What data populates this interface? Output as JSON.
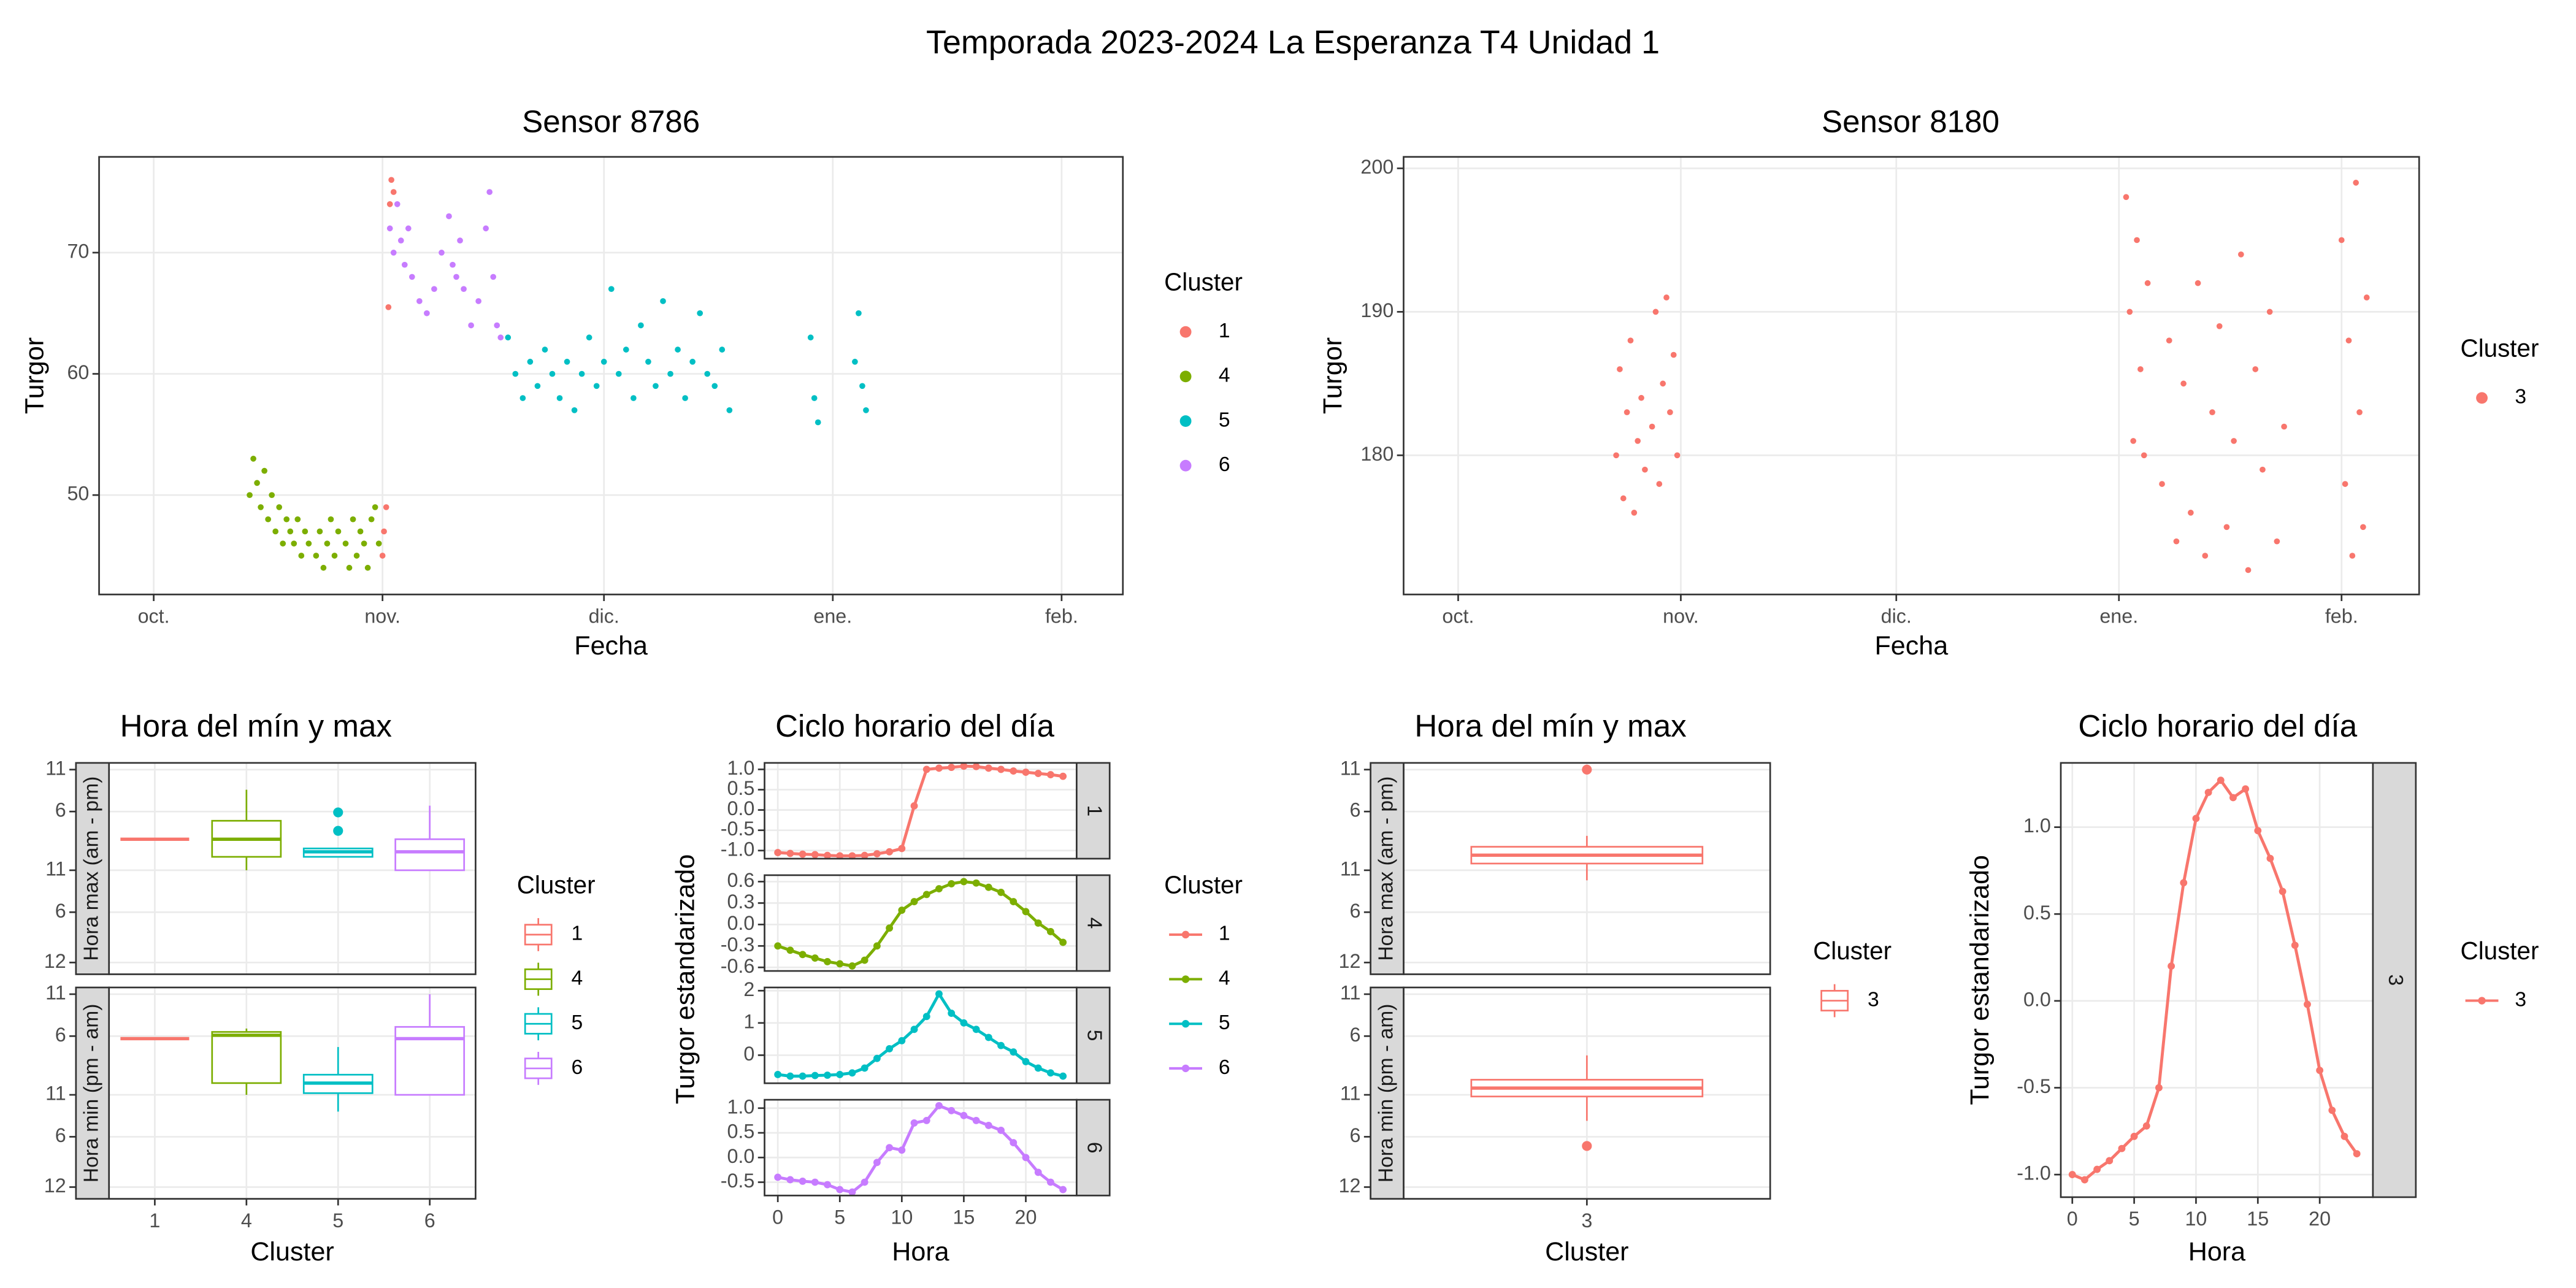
{
  "title": "Temporada 2023-2024 La Esperanza T4 Unidad 1",
  "chart_data": [
    {
      "type": "scatter",
      "title": "Sensor 8786",
      "x_label": "Fecha",
      "y_label": "Turgor",
      "legend_title": "Cluster",
      "xlim": [
        -7.4,
        131.3
      ],
      "xticks": [
        {
          "value": 0,
          "label": "oct."
        },
        {
          "value": 31,
          "label": "nov."
        },
        {
          "value": 61,
          "label": "dic."
        },
        {
          "value": 92,
          "label": "ene."
        },
        {
          "value": 123,
          "label": "feb."
        }
      ],
      "ylim": [
        41.8,
        77.9
      ],
      "yticks": [
        50,
        60,
        70
      ],
      "grid": true,
      "series": [
        {
          "name": "1",
          "color": "#F8766D",
          "x": [
            31,
            31.2,
            31.5,
            31.8,
            32,
            32.2,
            32.5
          ],
          "values": [
            45,
            47,
            49,
            65.5,
            74,
            76,
            75
          ]
        },
        {
          "name": "4",
          "color": "#7CAE00",
          "x": [
            13,
            13.5,
            14,
            14.5,
            15,
            15.5,
            16,
            16.5,
            17,
            17.5,
            18,
            18.5,
            19,
            19.5,
            20,
            20.5,
            21,
            22,
            22.5,
            23,
            23.5,
            24,
            24.5,
            25,
            26,
            26.5,
            27,
            27.5,
            28,
            28.5,
            29,
            29.5,
            30,
            30.5
          ],
          "values": [
            50,
            53,
            51,
            49,
            52,
            48,
            50,
            47,
            49,
            46,
            48,
            47,
            46,
            48,
            45,
            47,
            46,
            45,
            47,
            44,
            46,
            48,
            45,
            47,
            46,
            44,
            48,
            45,
            47,
            46,
            44,
            48,
            49,
            46
          ]
        },
        {
          "name": "5",
          "color": "#00BFC4",
          "x": [
            48,
            49,
            50,
            51,
            52,
            53,
            54,
            55,
            56,
            57,
            58,
            59,
            60,
            61,
            62,
            63,
            64,
            65,
            66,
            67,
            68,
            69,
            70,
            71,
            72,
            73,
            74,
            75,
            76,
            77,
            78,
            89,
            89.5,
            90,
            95,
            95.5,
            96,
            96.5
          ],
          "values": [
            63,
            60,
            58,
            61,
            59,
            62,
            60,
            58,
            61,
            57,
            60,
            63,
            59,
            61,
            67,
            60,
            62,
            58,
            64,
            61,
            59,
            66,
            60,
            62,
            58,
            61,
            65,
            60,
            59,
            62,
            57,
            63,
            58,
            56,
            61,
            65,
            59,
            57
          ]
        },
        {
          "name": "6",
          "color": "#C77CFF",
          "x": [
            32,
            32.5,
            33,
            33.5,
            34,
            34.5,
            35,
            36,
            37,
            38,
            39,
            40,
            40.5,
            41,
            41.5,
            42,
            43,
            44,
            45,
            45.5,
            46,
            46.5,
            47
          ],
          "values": [
            72,
            70,
            74,
            71,
            69,
            72,
            68,
            66,
            65,
            67,
            70,
            73,
            69,
            68,
            71,
            67,
            64,
            66,
            72,
            75,
            68,
            64,
            63
          ]
        }
      ]
    },
    {
      "type": "scatter",
      "title": "Sensor 8180",
      "x_label": "Fecha",
      "y_label": "Turgor",
      "legend_title": "Cluster",
      "xlim": [
        -7.6,
        133.8
      ],
      "xticks": [
        {
          "value": 0,
          "label": "oct."
        },
        {
          "value": 31,
          "label": "nov."
        },
        {
          "value": 61,
          "label": "dic."
        },
        {
          "value": 92,
          "label": "ene."
        },
        {
          "value": 123,
          "label": "feb."
        }
      ],
      "ylim": [
        170.3,
        200.8
      ],
      "yticks": [
        180,
        190,
        200
      ],
      "grid": true,
      "series": [
        {
          "name": "3",
          "color": "#F8766D",
          "x": [
            22,
            22.5,
            23,
            23.5,
            24,
            24.5,
            25,
            25.5,
            26,
            27,
            27.5,
            28,
            28.5,
            29,
            29.5,
            30,
            30.5,
            93,
            93.5,
            94,
            94.5,
            95,
            95.5,
            96,
            98,
            99,
            100,
            101,
            102,
            103,
            104,
            105,
            106,
            107,
            108,
            109,
            110,
            111,
            112,
            113,
            114,
            115,
            123,
            123.5,
            124,
            124.5,
            125,
            125.5,
            126,
            126.5
          ],
          "values": [
            180,
            186,
            177,
            183,
            188,
            176,
            181,
            184,
            179,
            182,
            190,
            178,
            185,
            191,
            183,
            187,
            180,
            198,
            190,
            181,
            195,
            186,
            180,
            192,
            178,
            188,
            174,
            185,
            176,
            192,
            173,
            183,
            189,
            175,
            181,
            194,
            172,
            186,
            179,
            190,
            174,
            182,
            195,
            178,
            188,
            173,
            199,
            183,
            175,
            191
          ]
        }
      ]
    },
    {
      "type": "box",
      "title": "Hora del mín y max",
      "x_label": "Cluster",
      "legend_title": "Cluster",
      "categories": [
        "1",
        "4",
        "5",
        "6"
      ],
      "colors": [
        "#F8766D",
        "#7CAE00",
        "#00BFC4",
        "#C77CFF"
      ],
      "ylim": [
        -1.4,
        23.8
      ],
      "yticks": [
        {
          "value": 0,
          "label": "12"
        },
        6,
        11,
        {
          "value": 18,
          "label": "6"
        },
        {
          "value": 23,
          "label": "11"
        }
      ],
      "grid": true,
      "facets": [
        {
          "label": "Hora max (am - pm)",
          "boxes": [
            {
              "q1": 14.7,
              "median": 14.7,
              "q3": 14.7,
              "whislo": 14.7,
              "whishi": 14.7,
              "outliers": []
            },
            {
              "q1": 12.6,
              "median": 14.7,
              "q3": 16.9,
              "whislo": 11.0,
              "whishi": 20.6,
              "outliers": []
            },
            {
              "q1": 12.6,
              "median": 13.2,
              "q3": 13.6,
              "whislo": 12.6,
              "whishi": 13.6,
              "outliers": [
                17.9,
                15.7
              ]
            },
            {
              "q1": 11.0,
              "median": 13.2,
              "q3": 14.7,
              "whislo": 11.0,
              "whishi": 18.7,
              "outliers": []
            }
          ]
        },
        {
          "label": "Hora min (pm - am)",
          "boxes": [
            {
              "q1": 17.7,
              "median": 17.7,
              "q3": 17.7,
              "whislo": 17.7,
              "whishi": 17.7,
              "outliers": []
            },
            {
              "q1": 12.4,
              "median": 18.1,
              "q3": 18.5,
              "whislo": 11.0,
              "whishi": 18.9,
              "outliers": []
            },
            {
              "q1": 11.2,
              "median": 12.4,
              "q3": 13.4,
              "whislo": 9.0,
              "whishi": 16.7,
              "outliers": []
            },
            {
              "q1": 11.0,
              "median": 17.7,
              "q3": 19.1,
              "whislo": 11.0,
              "whishi": 23.0,
              "outliers": []
            }
          ]
        }
      ]
    },
    {
      "type": "line",
      "title": "Ciclo horario del día",
      "x_label": "Hora",
      "y_label": "Turgor estandarizado",
      "legend_title": "Cluster",
      "x": [
        0,
        1,
        2,
        3,
        4,
        5,
        6,
        7,
        8,
        9,
        10,
        11,
        12,
        13,
        14,
        15,
        16,
        17,
        18,
        19,
        20,
        21,
        22,
        23
      ],
      "xlim": [
        -1.07,
        24.1
      ],
      "xticks": [
        0,
        5,
        10,
        15,
        20
      ],
      "grid": true,
      "facets": [
        {
          "label": "1",
          "color": "#F8766D",
          "ylim": [
            -1.2,
            1.16
          ],
          "yticks": [
            {
              "value": 1,
              "label": "1.0"
            },
            0.5,
            {
              "value": 0,
              "label": "0.0"
            },
            -0.5,
            {
              "value": -1,
              "label": "-1.0"
            }
          ],
          "values": [
            -1.05,
            -1.07,
            -1.09,
            -1.1,
            -1.12,
            -1.13,
            -1.13,
            -1.12,
            -1.08,
            -1.03,
            -0.95,
            0.1,
            1.0,
            1.03,
            1.05,
            1.08,
            1.07,
            1.03,
            1.0,
            0.96,
            0.93,
            0.9,
            0.87,
            0.83
          ]
        },
        {
          "label": "4",
          "color": "#7CAE00",
          "ylim": [
            -0.65,
            0.69
          ],
          "yticks": [
            0.6,
            0.3,
            {
              "value": 0,
              "label": "0.0"
            },
            -0.3,
            -0.6
          ],
          "values": [
            -0.3,
            -0.36,
            -0.42,
            -0.47,
            -0.52,
            -0.55,
            -0.58,
            -0.5,
            -0.3,
            -0.05,
            0.2,
            0.32,
            0.42,
            0.5,
            0.57,
            0.6,
            0.58,
            0.52,
            0.45,
            0.32,
            0.18,
            0.02,
            -0.1,
            -0.25
          ]
        },
        {
          "label": "5",
          "color": "#00BFC4",
          "ylim": [
            -0.87,
            2.1
          ],
          "yticks": [
            2,
            1,
            0
          ],
          "values": [
            -0.6,
            -0.65,
            -0.65,
            -0.63,
            -0.62,
            -0.6,
            -0.55,
            -0.4,
            -0.1,
            0.2,
            0.45,
            0.8,
            1.2,
            1.9,
            1.3,
            1.0,
            0.8,
            0.55,
            0.3,
            0.1,
            -0.2,
            -0.4,
            -0.55,
            -0.65
          ]
        },
        {
          "label": "6",
          "color": "#C77CFF",
          "ylim": [
            -0.77,
            1.17
          ],
          "yticks": [
            {
              "value": 1,
              "label": "1.0"
            },
            0.5,
            {
              "value": 0,
              "label": "0.0"
            },
            -0.5
          ],
          "values": [
            -0.4,
            -0.45,
            -0.48,
            -0.5,
            -0.55,
            -0.65,
            -0.7,
            -0.5,
            -0.1,
            0.2,
            0.15,
            0.7,
            0.75,
            1.05,
            0.95,
            0.85,
            0.75,
            0.65,
            0.55,
            0.3,
            0.0,
            -0.3,
            -0.5,
            -0.65
          ]
        }
      ]
    },
    {
      "type": "box",
      "title": "Hora del mín y max",
      "x_label": "Cluster",
      "legend_title": "Cluster",
      "categories": [
        "3"
      ],
      "colors": [
        "#F8766D"
      ],
      "ylim": [
        -1.4,
        23.8
      ],
      "yticks": [
        {
          "value": 0,
          "label": "12"
        },
        6,
        11,
        {
          "value": 18,
          "label": "6"
        },
        {
          "value": 23,
          "label": "11"
        }
      ],
      "grid": true,
      "facets": [
        {
          "label": "Hora max (am - pm)",
          "boxes": [
            {
              "q1": 11.8,
              "median": 12.8,
              "q3": 13.8,
              "whislo": 9.8,
              "whishi": 15.1,
              "outliers": [
                23.0
              ]
            }
          ]
        },
        {
          "label": "Hora min (pm - am)",
          "boxes": [
            {
              "q1": 10.8,
              "median": 11.8,
              "q3": 12.8,
              "whislo": 7.9,
              "whishi": 15.7,
              "outliers": [
                4.9
              ]
            }
          ]
        }
      ]
    },
    {
      "type": "line",
      "title": "Ciclo horario del día",
      "x_label": "Hora",
      "y_label": "Turgor estandarizado",
      "legend_title": "Cluster",
      "x": [
        0,
        1,
        2,
        3,
        4,
        5,
        6,
        7,
        8,
        9,
        10,
        11,
        12,
        13,
        14,
        15,
        16,
        17,
        18,
        19,
        20,
        21,
        22,
        23
      ],
      "xlim": [
        -0.93,
        24.3
      ],
      "xticks": [
        0,
        5,
        10,
        15,
        20
      ],
      "grid": true,
      "facets": [
        {
          "label": "3",
          "color": "#F8766D",
          "ylim": [
            -1.13,
            1.37
          ],
          "yticks": [
            {
              "value": 1,
              "label": "1.0"
            },
            0.5,
            {
              "value": 0,
              "label": "0.0"
            },
            -0.5,
            {
              "value": -1,
              "label": "-1.0"
            }
          ],
          "values": [
            -1.0,
            -1.03,
            -0.97,
            -0.92,
            -0.85,
            -0.78,
            -0.72,
            -0.5,
            0.2,
            0.68,
            1.05,
            1.2,
            1.27,
            1.17,
            1.22,
            0.98,
            0.82,
            0.63,
            0.32,
            -0.02,
            -0.4,
            -0.63,
            -0.78,
            -0.88
          ]
        }
      ]
    }
  ]
}
